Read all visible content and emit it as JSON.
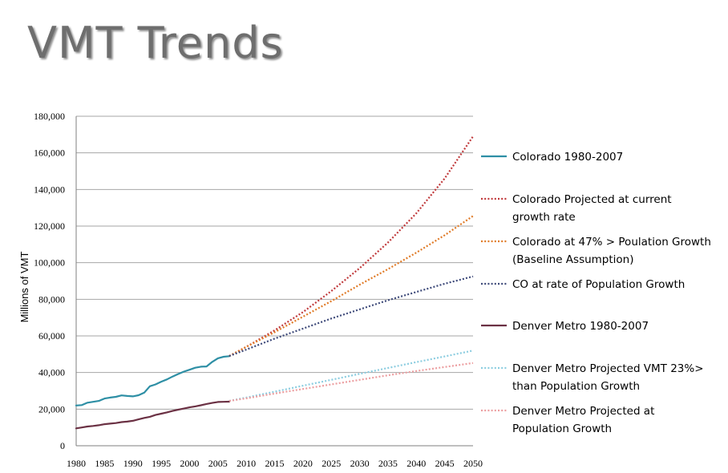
{
  "slide": {
    "title": "VMT Trends"
  },
  "chart_data": {
    "type": "line",
    "xlabel": "",
    "ylabel": "Millions of VMT",
    "xlim": [
      1980,
      2050
    ],
    "ylim": [
      0,
      180000
    ],
    "x_ticks": [
      1980,
      1985,
      1990,
      1995,
      2000,
      2005,
      2010,
      2015,
      2020,
      2025,
      2030,
      2035,
      2040,
      2045,
      2050
    ],
    "y_ticks": [
      0,
      20000,
      40000,
      60000,
      80000,
      100000,
      120000,
      140000,
      160000,
      180000
    ],
    "y_tick_labels": [
      "0",
      "20,000",
      "40,000",
      "60,000",
      "80,000",
      "100,000",
      "120,000",
      "140,000",
      "160,000",
      "180,000"
    ],
    "grid": "horizontal",
    "legend_position": "right",
    "series": [
      {
        "name": "Colorado 1980-2007",
        "color": "#2e8fa5",
        "style": "solid",
        "x": [
          1980,
          1981,
          1982,
          1983,
          1984,
          1985,
          1986,
          1987,
          1988,
          1989,
          1990,
          1991,
          1992,
          1993,
          1994,
          1995,
          1996,
          1997,
          1998,
          1999,
          2000,
          2001,
          2002,
          2003,
          2004,
          2005,
          2006,
          2007
        ],
        "y": [
          22000,
          22200,
          23500,
          24000,
          24500,
          25800,
          26300,
          26700,
          27500,
          27200,
          27000,
          27600,
          29000,
          32500,
          33500,
          35000,
          36200,
          37800,
          39200,
          40500,
          41500,
          42600,
          43200,
          43300,
          45800,
          47800,
          48600,
          48900
        ]
      },
      {
        "name": "Colorado Projected at current growth rate",
        "color": "#c0393b",
        "style": "dotted",
        "x": [
          2007,
          2010,
          2015,
          2020,
          2025,
          2030,
          2035,
          2040,
          2045,
          2050
        ],
        "y": [
          49000,
          54000,
          63000,
          73000,
          84500,
          97000,
          111000,
          127000,
          146000,
          169000
        ]
      },
      {
        "name": "Colorado at 47% > Poulation Growth (Baseline Assumption)",
        "color": "#e07b28",
        "style": "dotted",
        "x": [
          2007,
          2010,
          2015,
          2020,
          2025,
          2030,
          2035,
          2040,
          2045,
          2050
        ],
        "y": [
          49000,
          54000,
          62000,
          70500,
          79000,
          88000,
          96500,
          105500,
          115000,
          125500
        ]
      },
      {
        "name": "CO at rate of Population Growth",
        "color": "#3e4a7a",
        "style": "dotted",
        "x": [
          2007,
          2010,
          2015,
          2020,
          2025,
          2030,
          2035,
          2040,
          2045,
          2050
        ],
        "y": [
          49000,
          52500,
          58500,
          64000,
          69500,
          74500,
          79500,
          84000,
          88500,
          92500
        ]
      },
      {
        "name": "Denver Metro 1980-2007",
        "color": "#6b3144",
        "style": "solid",
        "x": [
          1980,
          1981,
          1982,
          1983,
          1984,
          1985,
          1986,
          1987,
          1988,
          1989,
          1990,
          1991,
          1992,
          1993,
          1994,
          1995,
          1996,
          1997,
          1998,
          1999,
          2000,
          2001,
          2002,
          2003,
          2004,
          2005,
          2006,
          2007
        ],
        "y": [
          9500,
          10000,
          10500,
          10800,
          11200,
          11800,
          12100,
          12400,
          12900,
          13200,
          13600,
          14400,
          15200,
          15800,
          16800,
          17500,
          18200,
          19000,
          19700,
          20300,
          21000,
          21500,
          22100,
          22800,
          23400,
          23900,
          24000,
          24100
        ]
      },
      {
        "name": "Denver Metro Projected VMT 23%> than Population Growth",
        "color": "#8ccde0",
        "style": "dotted",
        "x": [
          2007,
          2010,
          2015,
          2020,
          2025,
          2030,
          2035,
          2040,
          2045,
          2050
        ],
        "y": [
          24500,
          26300,
          29500,
          32800,
          36000,
          39300,
          42500,
          45700,
          48800,
          52000
        ]
      },
      {
        "name": "Denver Metro Projected at Population Growth",
        "color": "#ec9ea0",
        "style": "dotted",
        "x": [
          2007,
          2010,
          2015,
          2020,
          2025,
          2030,
          2035,
          2040,
          2045,
          2050
        ],
        "y": [
          24500,
          25900,
          28500,
          31000,
          33500,
          36000,
          38500,
          40800,
          43000,
          45200
        ]
      }
    ]
  }
}
